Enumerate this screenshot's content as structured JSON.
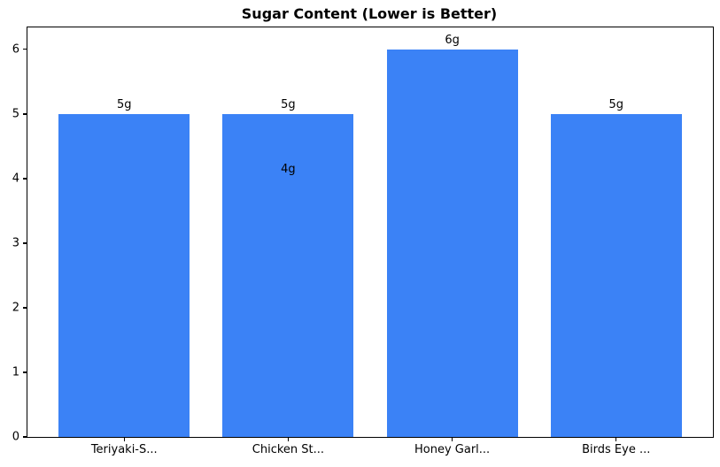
{
  "figure": {
    "title": "Sugar Content (Lower is Better)"
  },
  "chart_data": {
    "type": "bar",
    "title": "Sugar Content (Lower is Better)",
    "categories": [
      "Teriyaki-S...",
      "Chicken St...",
      "Honey Garl...",
      "Birds Eye ..."
    ],
    "values": [
      5,
      5,
      6,
      5
    ],
    "bar_labels": [
      "5g",
      "5g",
      "6g",
      "5g"
    ],
    "overlap_annotation": {
      "category_index": 1,
      "value": 4,
      "label": "4g"
    },
    "xlabel": "",
    "ylabel": "",
    "yticks": [
      0,
      1,
      2,
      3,
      4,
      5,
      6
    ],
    "ylim": [
      0,
      6.34
    ],
    "xlim": [
      -0.59,
      3.59
    ],
    "bar_width": 0.8,
    "bar_color": "#3b82f6",
    "axis_color": "#000000",
    "background": "#ffffff",
    "grid": false,
    "legend": null
  }
}
